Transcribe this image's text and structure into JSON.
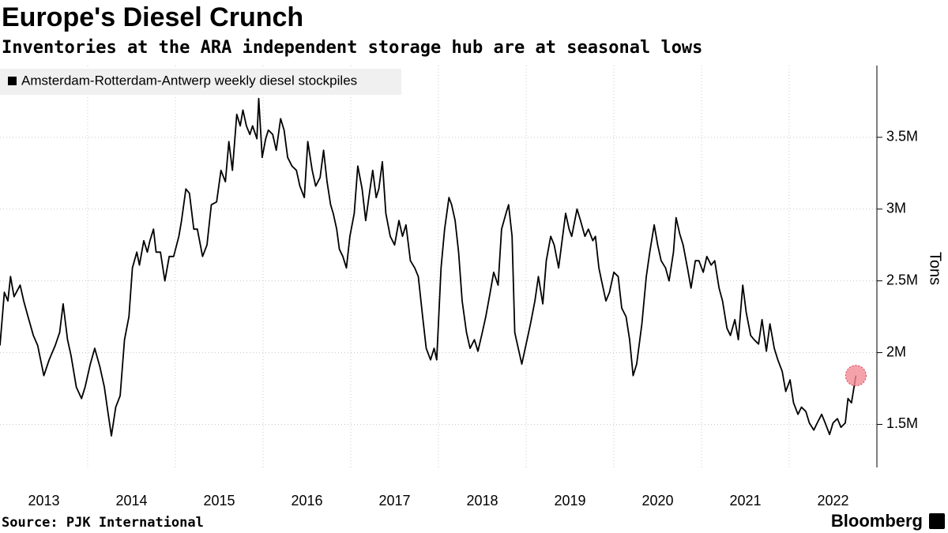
{
  "chart_data": {
    "type": "line",
    "title": "Europe's Diesel Crunch",
    "subtitle": "Inventories at the ARA independent storage hub are at seasonal lows",
    "y_label": "Tons",
    "source": "Source: PJK International",
    "branding": "Bloomberg",
    "grid": true,
    "highlight_last": true,
    "highlight_color": "#f28b96",
    "legend": "top-left",
    "xlim": [
      2013,
      2023
    ],
    "xticks": [
      {
        "value": 2013,
        "label": "2013"
      },
      {
        "value": 2014,
        "label": "2014"
      },
      {
        "value": 2015,
        "label": "2015"
      },
      {
        "value": 2016,
        "label": "2016"
      },
      {
        "value": 2017,
        "label": "2017"
      },
      {
        "value": 2018,
        "label": "2018"
      },
      {
        "value": 2019,
        "label": "2019"
      },
      {
        "value": 2020,
        "label": "2020"
      },
      {
        "value": 2021,
        "label": "2021"
      },
      {
        "value": 2022,
        "label": "2022"
      }
    ],
    "ylim": [
      1200000,
      4000000
    ],
    "yticks": [
      {
        "value": 1500000,
        "label": "1.5M"
      },
      {
        "value": 2000000,
        "label": "2M"
      },
      {
        "value": 2500000,
        "label": "2.5M"
      },
      {
        "value": 3000000,
        "label": "3M"
      },
      {
        "value": 3500000,
        "label": "3.5M"
      }
    ],
    "x": [
      2013.0,
      2013.05,
      2013.09,
      2013.12,
      2013.16,
      2013.23,
      2013.27,
      2013.32,
      2013.38,
      2013.43,
      2013.5,
      2013.56,
      2013.63,
      2013.68,
      2013.72,
      2013.77,
      2013.81,
      2013.87,
      2013.93,
      2013.97,
      2014.03,
      2014.08,
      2014.14,
      2014.19,
      2014.23,
      2014.27,
      2014.32,
      2014.37,
      2014.42,
      2014.47,
      2014.51,
      2014.56,
      2014.59,
      2014.64,
      2014.68,
      2014.71,
      2014.75,
      2014.78,
      2014.83,
      2014.88,
      2014.93,
      2014.98,
      2015.04,
      2015.07,
      2015.12,
      2015.16,
      2015.21,
      2015.25,
      2015.31,
      2015.36,
      2015.41,
      2015.47,
      2015.52,
      2015.57,
      2015.61,
      2015.65,
      2015.7,
      2015.74,
      2015.77,
      2015.81,
      2015.85,
      2015.88,
      2015.93,
      2015.95,
      2015.99,
      2016.03,
      2016.06,
      2016.11,
      2016.15,
      2016.2,
      2016.24,
      2016.28,
      2016.33,
      2016.38,
      2016.42,
      2016.47,
      2016.51,
      2016.56,
      2016.6,
      2016.65,
      2016.69,
      2016.73,
      2016.77,
      2016.8,
      2016.84,
      2016.87,
      2016.91,
      2016.95,
      2016.99,
      2017.04,
      2017.08,
      2017.13,
      2017.17,
      2017.22,
      2017.25,
      2017.29,
      2017.32,
      2017.36,
      2017.4,
      2017.45,
      2017.5,
      2017.55,
      2017.59,
      2017.63,
      2017.68,
      2017.73,
      2017.77,
      2017.82,
      2017.86,
      2017.91,
      2017.95,
      2017.98,
      2018.03,
      2018.07,
      2018.12,
      2018.15,
      2018.19,
      2018.23,
      2018.27,
      2018.32,
      2018.36,
      2018.41,
      2018.45,
      2018.5,
      2018.54,
      2018.59,
      2018.63,
      2018.68,
      2018.72,
      2018.77,
      2018.8,
      2018.84,
      2018.87,
      2018.91,
      2018.95,
      2019.0,
      2019.05,
      2019.1,
      2019.14,
      2019.19,
      2019.23,
      2019.28,
      2019.32,
      2019.37,
      2019.41,
      2019.45,
      2019.49,
      2019.52,
      2019.58,
      2019.62,
      2019.67,
      2019.71,
      2019.76,
      2019.79,
      2019.83,
      2019.86,
      2019.91,
      2019.95,
      2020.0,
      2020.05,
      2020.09,
      2020.14,
      2020.18,
      2020.22,
      2020.26,
      2020.32,
      2020.37,
      2020.41,
      2020.46,
      2020.5,
      2020.54,
      2020.59,
      2020.63,
      2020.68,
      2020.71,
      2020.75,
      2020.79,
      2020.84,
      2020.88,
      2020.93,
      2020.97,
      2021.02,
      2021.06,
      2021.11,
      2021.15,
      2021.2,
      2021.24,
      2021.29,
      2021.33,
      2021.38,
      2021.42,
      2021.47,
      2021.51,
      2021.56,
      2021.6,
      2021.65,
      2021.69,
      2021.74,
      2021.78,
      2021.83,
      2021.87,
      2021.92,
      2021.96,
      2022.01,
      2022.05,
      2022.1,
      2022.14,
      2022.19,
      2022.23,
      2022.28,
      2022.32,
      2022.37,
      2022.41,
      2022.46,
      2022.5,
      2022.55,
      2022.59,
      2022.64,
      2022.67,
      2022.71,
      2022.76
    ],
    "series": [
      {
        "name": "Amsterdam-Rotterdam-Antwerp weekly diesel stockpiles",
        "color": "#000000",
        "values": [
          2050000,
          2420000,
          2360000,
          2530000,
          2390000,
          2470000,
          2360000,
          2250000,
          2120000,
          2050000,
          1840000,
          1950000,
          2050000,
          2140000,
          2340000,
          2090000,
          1980000,
          1760000,
          1680000,
          1760000,
          1920000,
          2030000,
          1900000,
          1760000,
          1590000,
          1420000,
          1620000,
          1700000,
          2090000,
          2250000,
          2590000,
          2700000,
          2610000,
          2780000,
          2700000,
          2780000,
          2860000,
          2700000,
          2700000,
          2500000,
          2670000,
          2670000,
          2810000,
          2920000,
          3140000,
          3110000,
          2860000,
          2860000,
          2670000,
          2750000,
          3030000,
          3050000,
          3270000,
          3190000,
          3470000,
          3270000,
          3660000,
          3580000,
          3690000,
          3580000,
          3520000,
          3580000,
          3490000,
          3770000,
          3360000,
          3490000,
          3550000,
          3520000,
          3410000,
          3630000,
          3550000,
          3360000,
          3300000,
          3270000,
          3160000,
          3080000,
          3470000,
          3270000,
          3160000,
          3220000,
          3410000,
          3190000,
          3030000,
          2970000,
          2860000,
          2720000,
          2670000,
          2590000,
          2810000,
          2970000,
          3300000,
          3140000,
          2920000,
          3140000,
          3270000,
          3080000,
          3140000,
          3330000,
          2970000,
          2810000,
          2750000,
          2920000,
          2810000,
          2890000,
          2640000,
          2590000,
          2530000,
          2250000,
          2030000,
          1950000,
          2030000,
          1950000,
          2590000,
          2860000,
          3080000,
          3030000,
          2920000,
          2700000,
          2360000,
          2140000,
          2030000,
          2090000,
          2010000,
          2140000,
          2250000,
          2420000,
          2560000,
          2470000,
          2860000,
          2970000,
          3030000,
          2810000,
          2140000,
          2030000,
          1920000,
          2060000,
          2200000,
          2360000,
          2530000,
          2340000,
          2640000,
          2810000,
          2750000,
          2590000,
          2780000,
          2970000,
          2860000,
          2810000,
          3000000,
          2920000,
          2810000,
          2860000,
          2780000,
          2810000,
          2590000,
          2500000,
          2360000,
          2420000,
          2560000,
          2530000,
          2310000,
          2250000,
          2090000,
          1840000,
          1920000,
          2200000,
          2530000,
          2700000,
          2890000,
          2750000,
          2640000,
          2590000,
          2500000,
          2700000,
          2940000,
          2830000,
          2750000,
          2590000,
          2450000,
          2640000,
          2640000,
          2560000,
          2670000,
          2610000,
          2640000,
          2450000,
          2360000,
          2170000,
          2120000,
          2230000,
          2090000,
          2470000,
          2280000,
          2120000,
          2090000,
          2060000,
          2230000,
          2010000,
          2200000,
          2030000,
          1950000,
          1870000,
          1730000,
          1810000,
          1650000,
          1570000,
          1620000,
          1590000,
          1510000,
          1460000,
          1510000,
          1570000,
          1510000,
          1430000,
          1510000,
          1540000,
          1480000,
          1510000,
          1680000,
          1650000,
          1840000
        ]
      }
    ]
  }
}
